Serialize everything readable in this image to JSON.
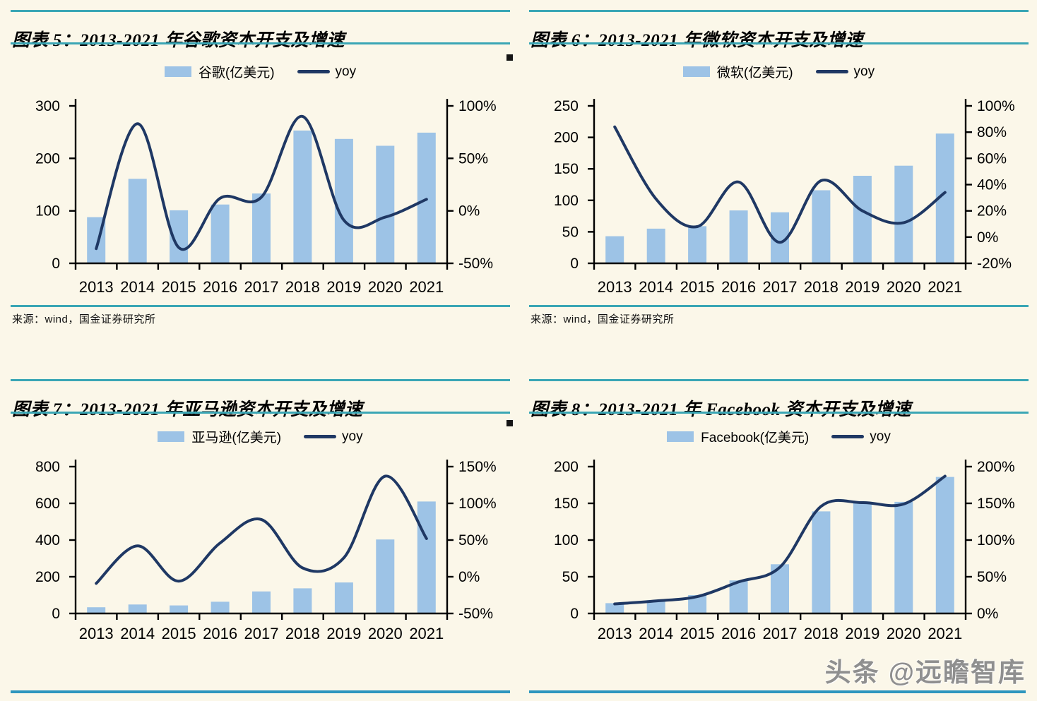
{
  "page": {
    "watermark": "头条 @远瞻智库"
  },
  "colors": {
    "background": "#FBF7E9",
    "bar": "#9DC3E6",
    "line": "#1F3864",
    "rule_teal": "#3AA6B5",
    "rule_footer": "#2E96BE",
    "axis": "#000000",
    "watermark": "#8F8F8F"
  },
  "panels": [
    {
      "title": "图表 5：2013-2021 年谷歌资本开支及增速",
      "legend_bar": "谷歌(亿美元)",
      "legend_line": "yoy",
      "source": "来源：wind，国金证券研究所"
    },
    {
      "title": "图表 6：2013-2021 年微软资本开支及增速",
      "legend_bar": "微软(亿美元)",
      "legend_line": "yoy",
      "source": "来源：wind，国金证券研究所"
    },
    {
      "title": "图表 7：2013-2021 年亚马逊资本开支及增速",
      "legend_bar": "亚马逊(亿美元)",
      "legend_line": "yoy"
    },
    {
      "title": "图表 8：2013-2021 年 Facebook 资本开支及增速",
      "legend_bar": "Facebook(亿美元)",
      "legend_line": "yoy"
    }
  ],
  "chart_data": [
    {
      "type": "bar+line",
      "title": "图表 5：2013-2021 年谷歌资本开支及增速",
      "categories": [
        "2013",
        "2014",
        "2015",
        "2016",
        "2017",
        "2018",
        "2019",
        "2020",
        "2021"
      ],
      "series": [
        {
          "name": "谷歌(亿美元)",
          "type": "bar",
          "axis": "left",
          "values": [
            88,
            161,
            101,
            112,
            133,
            253,
            237,
            224,
            249
          ]
        },
        {
          "name": "yoy",
          "type": "line",
          "axis": "right",
          "unit": "%",
          "values": [
            -36,
            83,
            -35,
            12,
            13,
            90,
            -9,
            -6,
            11
          ]
        }
      ],
      "left_axis": {
        "min": 0,
        "max": 300,
        "ticks": [
          0,
          100,
          200,
          300
        ]
      },
      "right_axis": {
        "min": -50,
        "max": 100,
        "ticks": [
          -50,
          0,
          50,
          100
        ],
        "format": "percent"
      },
      "legend_position": "top",
      "grid": false
    },
    {
      "type": "bar+line",
      "title": "图表 6：2013-2021 年微软资本开支及增速",
      "categories": [
        "2013",
        "2014",
        "2015",
        "2016",
        "2017",
        "2018",
        "2019",
        "2020",
        "2021"
      ],
      "series": [
        {
          "name": "微软(亿美元)",
          "type": "bar",
          "axis": "left",
          "values": [
            43,
            55,
            59,
            84,
            81,
            116,
            139,
            155,
            206
          ]
        },
        {
          "name": "yoy",
          "type": "line",
          "axis": "right",
          "unit": "%",
          "values": [
            84,
            29,
            8,
            42,
            -4,
            43,
            20,
            11,
            34
          ]
        }
      ],
      "left_axis": {
        "min": 0,
        "max": 250,
        "ticks": [
          0,
          50,
          100,
          150,
          200,
          250
        ]
      },
      "right_axis": {
        "min": -20,
        "max": 100,
        "ticks": [
          -20,
          0,
          20,
          40,
          60,
          80,
          100
        ],
        "format": "percent"
      },
      "legend_position": "top",
      "grid": false
    },
    {
      "type": "bar+line",
      "title": "图表 7：2013-2021 年亚马逊资本开支及增速",
      "categories": [
        "2013",
        "2014",
        "2015",
        "2016",
        "2017",
        "2018",
        "2019",
        "2020",
        "2021"
      ],
      "series": [
        {
          "name": "亚马逊(亿美元)",
          "type": "bar",
          "axis": "left",
          "values": [
            34,
            49,
            44,
            64,
            120,
            137,
            169,
            403,
            610
          ]
        },
        {
          "name": "yoy",
          "type": "line",
          "axis": "right",
          "unit": "%",
          "values": [
            -9,
            42,
            -6,
            46,
            78,
            12,
            26,
            137,
            52
          ]
        }
      ],
      "left_axis": {
        "min": 0,
        "max": 800,
        "ticks": [
          0,
          200,
          400,
          600,
          800
        ]
      },
      "right_axis": {
        "min": -50,
        "max": 150,
        "ticks": [
          -50,
          0,
          50,
          100,
          150
        ],
        "format": "percent"
      },
      "legend_position": "top",
      "grid": false
    },
    {
      "type": "bar+line",
      "title": "图表 8：2013-2021 年 Facebook 资本开支及增速",
      "categories": [
        "2013",
        "2014",
        "2015",
        "2016",
        "2017",
        "2018",
        "2019",
        "2020",
        "2021"
      ],
      "series": [
        {
          "name": "Facebook(亿美元)",
          "type": "bar",
          "axis": "left",
          "values": [
            14,
            18,
            25,
            45,
            67,
            139,
            151,
            152,
            186
          ]
        },
        {
          "name": "yoy",
          "type": "line",
          "axis": "right",
          "unit": "%",
          "values": [
            13,
            17,
            23,
            43,
            63,
            146,
            151,
            149,
            187
          ]
        }
      ],
      "left_axis": {
        "min": 0,
        "max": 200,
        "ticks": [
          0,
          50,
          100,
          150,
          200
        ]
      },
      "right_axis": {
        "min": 0,
        "max": 200,
        "ticks": [
          0,
          50,
          100,
          150,
          200
        ],
        "format": "percent"
      },
      "legend_position": "top",
      "grid": false
    }
  ]
}
